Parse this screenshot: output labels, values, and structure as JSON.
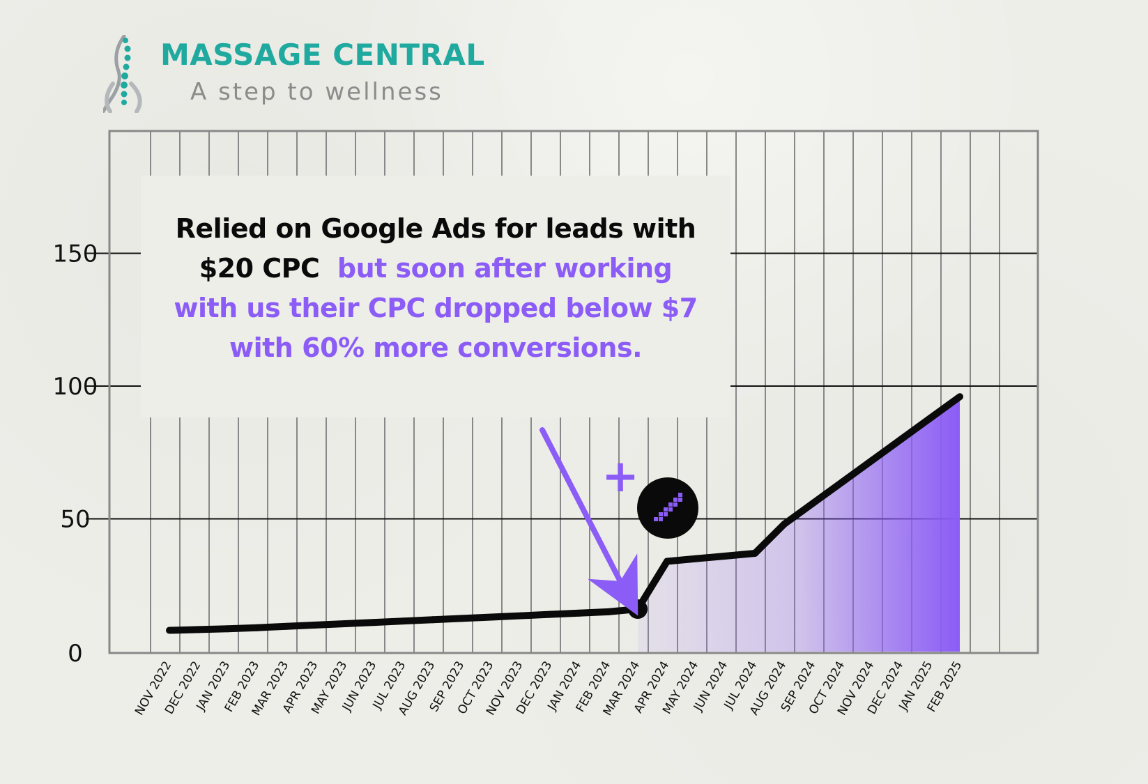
{
  "brand": {
    "name": "MASSAGE CENTRAL",
    "tagline": "A step to wellness"
  },
  "callout": {
    "line1": "Relied on Google Ads for leads with",
    "line2_dark": "$20 CPC",
    "line2_purple": "but soon after working",
    "line3": "with us their CPC dropped below $7",
    "line4": "with 60% more conversions."
  },
  "plus_symbol": "+",
  "colors": {
    "accent": "#8b5cf6",
    "brand": "#1fa99f",
    "line": "#0a0a0a",
    "gridline": "#888888"
  },
  "icons": [
    "spine-logo-icon",
    "pixel-arrow-badge-icon"
  ],
  "chart_data": {
    "type": "area",
    "x": [
      "NOV 2022",
      "DEC 2022",
      "JAN 2023",
      "FEB 2023",
      "MAR 2023",
      "APR 2023",
      "MAY 2023",
      "JUN 2023",
      "JUL 2023",
      "AUG 2023",
      "SEP 2023",
      "OCT 2023",
      "NOV 2023",
      "DEC 2023",
      "JAN 2024",
      "FEB 2024",
      "MAR 2024",
      "APR 2024",
      "MAY 2024",
      "JUN 2024",
      "JUL 2024",
      "AUG 2024",
      "SEP 2024",
      "OCT 2024",
      "NOV 2024",
      "DEC 2024",
      "JAN 2025",
      "FEB 2025"
    ],
    "series": [
      {
        "values": [
          8,
          8.3,
          8.6,
          9,
          9.5,
          10,
          10.5,
          11,
          11.5,
          12,
          12.5,
          13,
          13.5,
          14,
          14.5,
          15,
          16,
          34,
          35,
          36,
          37,
          48,
          56,
          64,
          72,
          80,
          88,
          96
        ]
      }
    ],
    "highlight_point": {
      "x": "MAR 2024",
      "y": 16
    },
    "yticks": [
      0,
      50,
      100,
      150
    ],
    "ylim": [
      0,
      200
    ],
    "grid": true
  }
}
